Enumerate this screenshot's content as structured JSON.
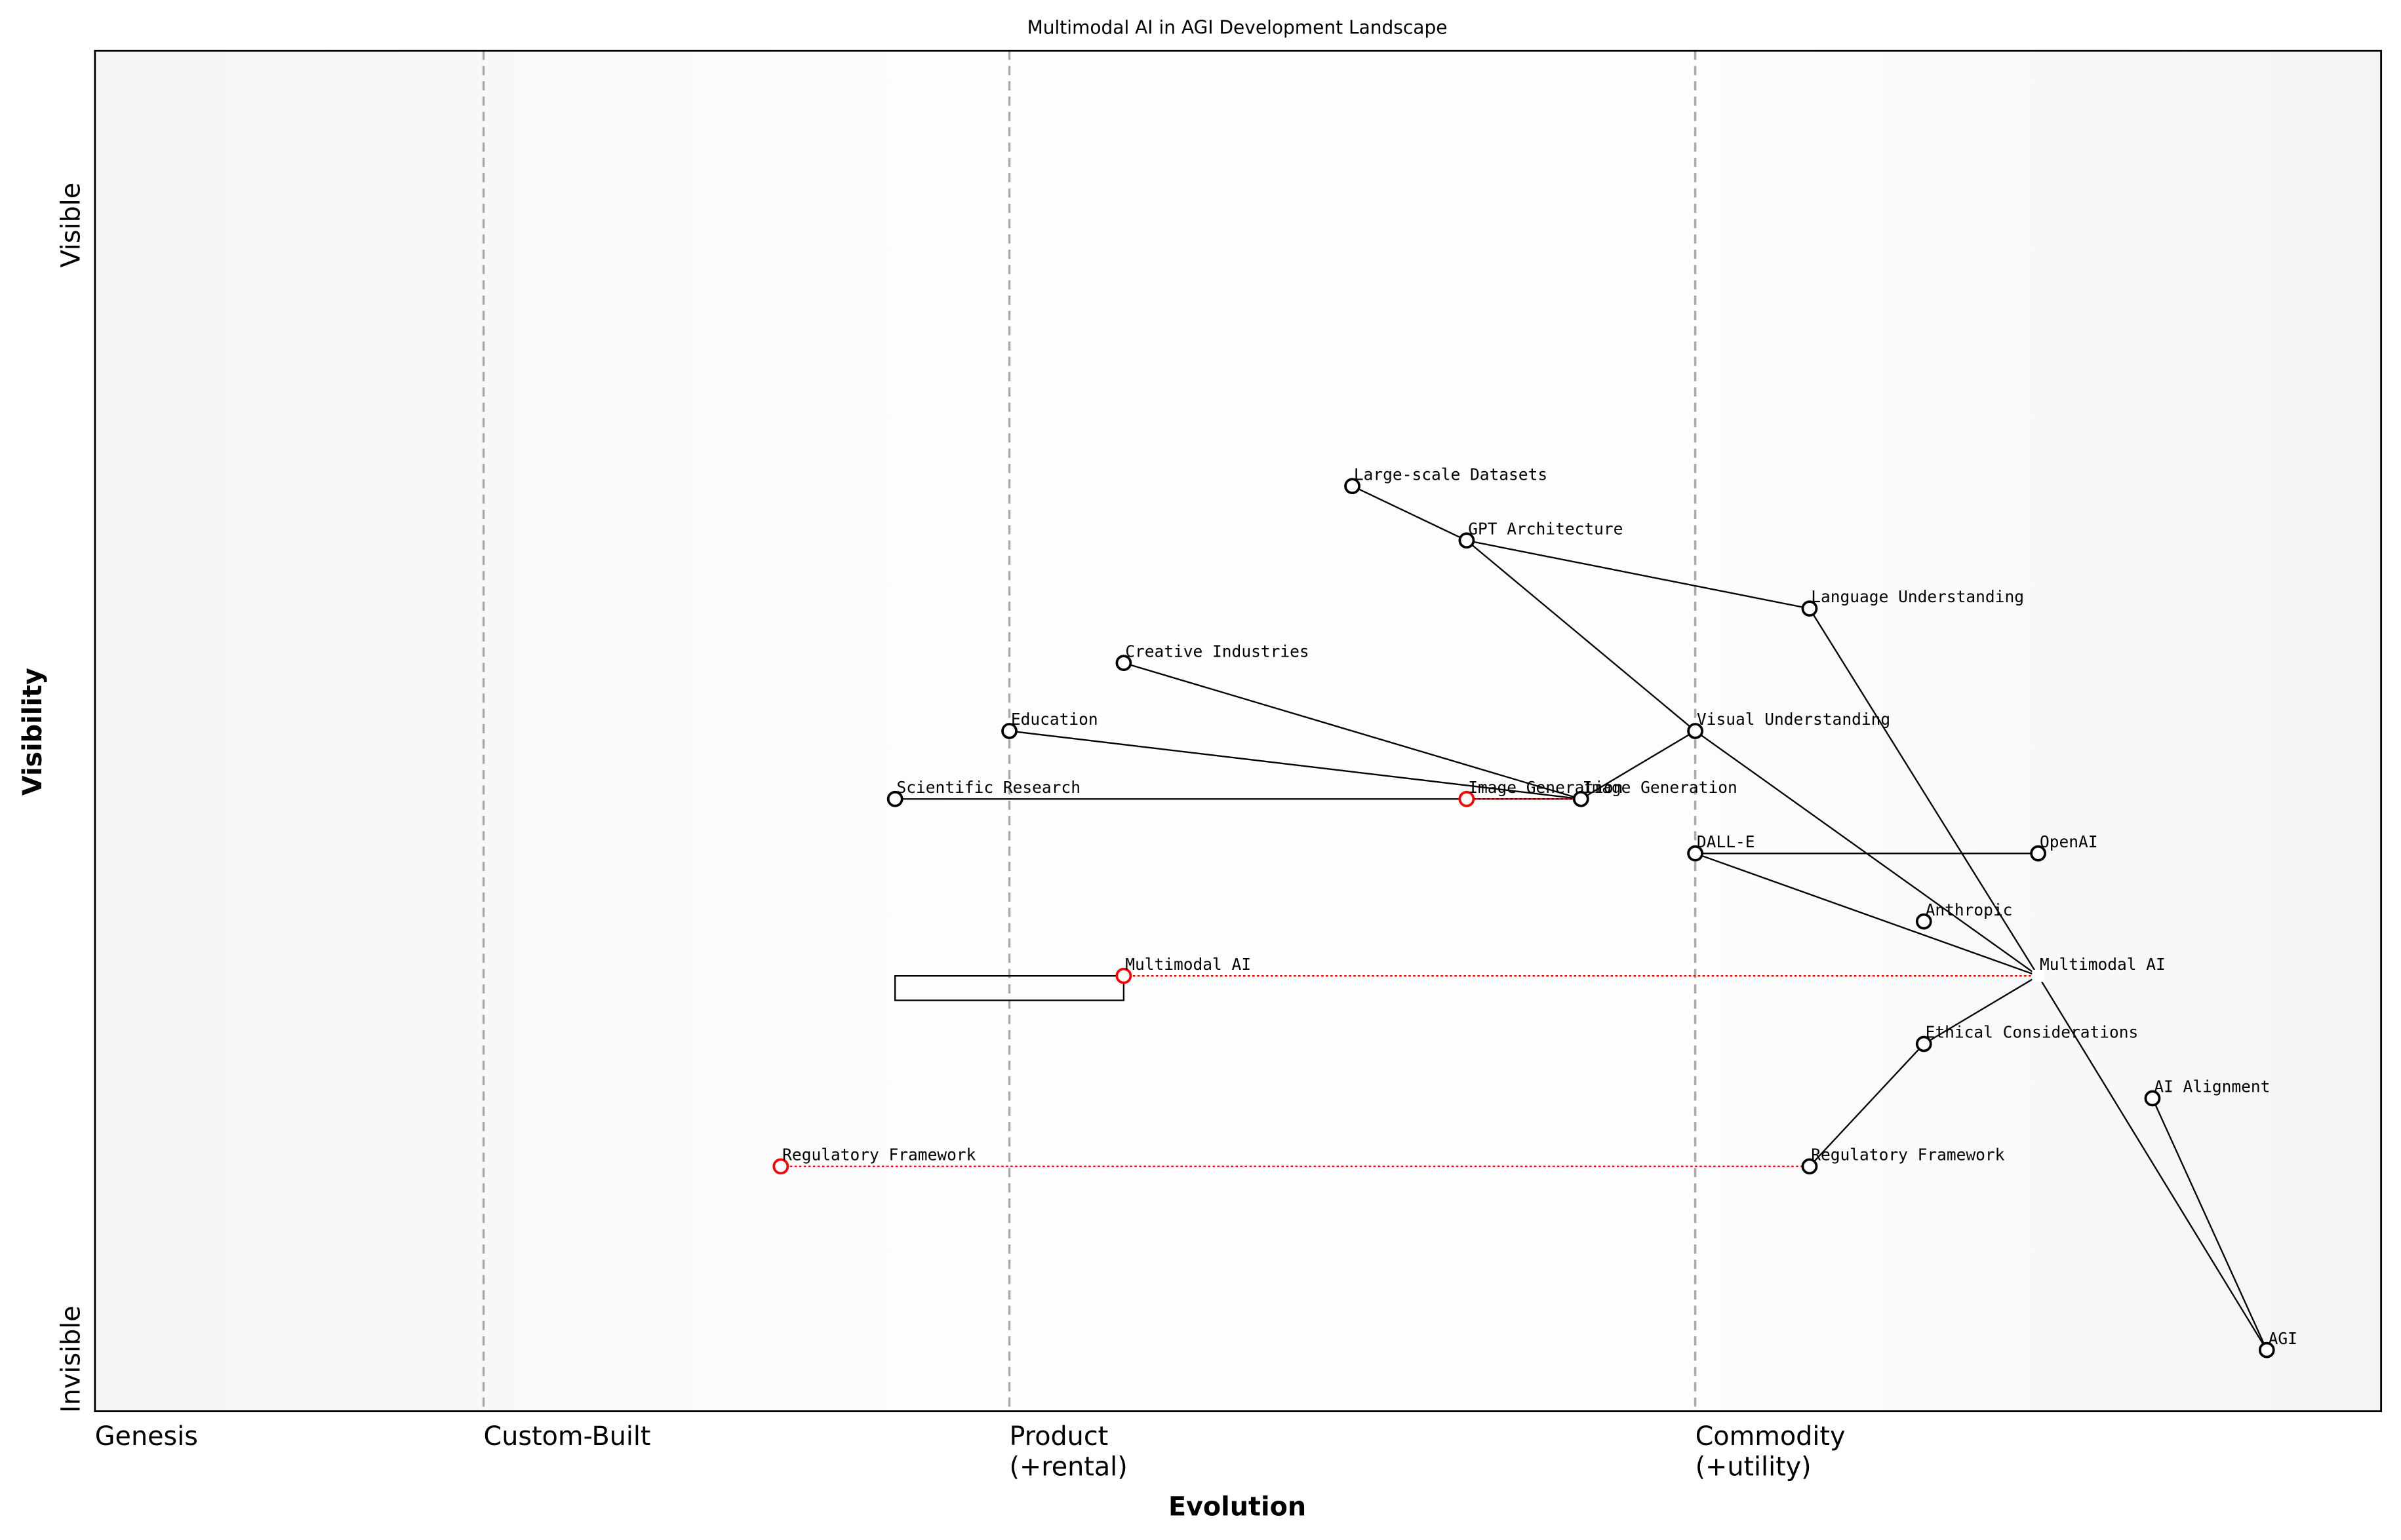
{
  "title": "Multimodal AI in AGI Development Landscape",
  "xlabel": "Evolution",
  "ylabel": "Visibility",
  "y_ticks": {
    "top": "Visible",
    "bottom": "Invisible"
  },
  "stages": [
    {
      "label": "Genesis",
      "at": 0.0
    },
    {
      "label": "Custom-Built",
      "at": 0.17
    },
    {
      "label": "Product",
      "label2": "(+rental)",
      "at": 0.4
    },
    {
      "label": "Commodity",
      "label2": "(+utility)",
      "at": 0.7
    }
  ],
  "colors": {
    "node": "#000000",
    "evolve": "#ff0000",
    "divider": "#aaaaaa"
  },
  "components": [
    {
      "id": "datasets",
      "name": "Large-scale Datasets",
      "evolution": 0.55,
      "visibility": 0.68
    },
    {
      "id": "gpt",
      "name": "GPT Architecture",
      "evolution": 0.6,
      "visibility": 0.64
    },
    {
      "id": "lang",
      "name": "Language Understanding",
      "evolution": 0.75,
      "visibility": 0.59
    },
    {
      "id": "creative",
      "name": "Creative Industries",
      "evolution": 0.45,
      "visibility": 0.55
    },
    {
      "id": "education",
      "name": "Education",
      "evolution": 0.4,
      "visibility": 0.5
    },
    {
      "id": "visual",
      "name": "Visual Understanding",
      "evolution": 0.7,
      "visibility": 0.5
    },
    {
      "id": "science",
      "name": "Scientific Research",
      "evolution": 0.35,
      "visibility": 0.45
    },
    {
      "id": "imagegen",
      "name": "Image Generation",
      "evolution": 0.65,
      "visibility": 0.45
    },
    {
      "id": "dalle",
      "name": "DALL-E",
      "evolution": 0.7,
      "visibility": 0.41
    },
    {
      "id": "openai",
      "name": "OpenAI",
      "evolution": 0.85,
      "visibility": 0.41
    },
    {
      "id": "anthropic",
      "name": "Anthropic",
      "evolution": 0.8,
      "visibility": 0.36
    },
    {
      "id": "multimodal",
      "name": "Multimodal AI",
      "evolution": 0.85,
      "visibility": 0.32,
      "anchor": true
    },
    {
      "id": "ethics",
      "name": "Ethical Considerations",
      "evolution": 0.8,
      "visibility": 0.27
    },
    {
      "id": "alignment",
      "name": "AI Alignment",
      "evolution": 0.9,
      "visibility": 0.23
    },
    {
      "id": "regulatory",
      "name": "Regulatory Framework",
      "evolution": 0.75,
      "visibility": 0.18
    },
    {
      "id": "agi",
      "name": "AGI",
      "evolution": 0.95,
      "visibility": 0.045
    }
  ],
  "links": [
    [
      "datasets",
      "gpt"
    ],
    [
      "gpt",
      "lang"
    ],
    [
      "gpt",
      "visual"
    ],
    [
      "visual",
      "imagegen"
    ],
    [
      "creative",
      "imagegen"
    ],
    [
      "education",
      "imagegen"
    ],
    [
      "science",
      "imagegen"
    ],
    [
      "visual",
      "multimodal"
    ],
    [
      "lang",
      "multimodal"
    ],
    [
      "multimodal",
      "agi"
    ],
    [
      "dalle",
      "openai"
    ],
    [
      "dalle",
      "multimodal"
    ],
    [
      "multimodal",
      "ethics"
    ],
    [
      "ethics",
      "regulatory"
    ],
    [
      "alignment",
      "agi"
    ]
  ],
  "evolutions": [
    {
      "name": "Image Generation",
      "from": 0.6,
      "to": 0.65,
      "visibility": 0.45
    },
    {
      "name": "Multimodal AI",
      "from": 0.45,
      "to": 0.85,
      "visibility": 0.32
    },
    {
      "name": "Regulatory Framework",
      "from": 0.3,
      "to": 0.75,
      "visibility": 0.18
    }
  ],
  "inertia": [
    {
      "component": "Multimodal AI",
      "from": 0.35,
      "to": 0.45
    }
  ]
}
